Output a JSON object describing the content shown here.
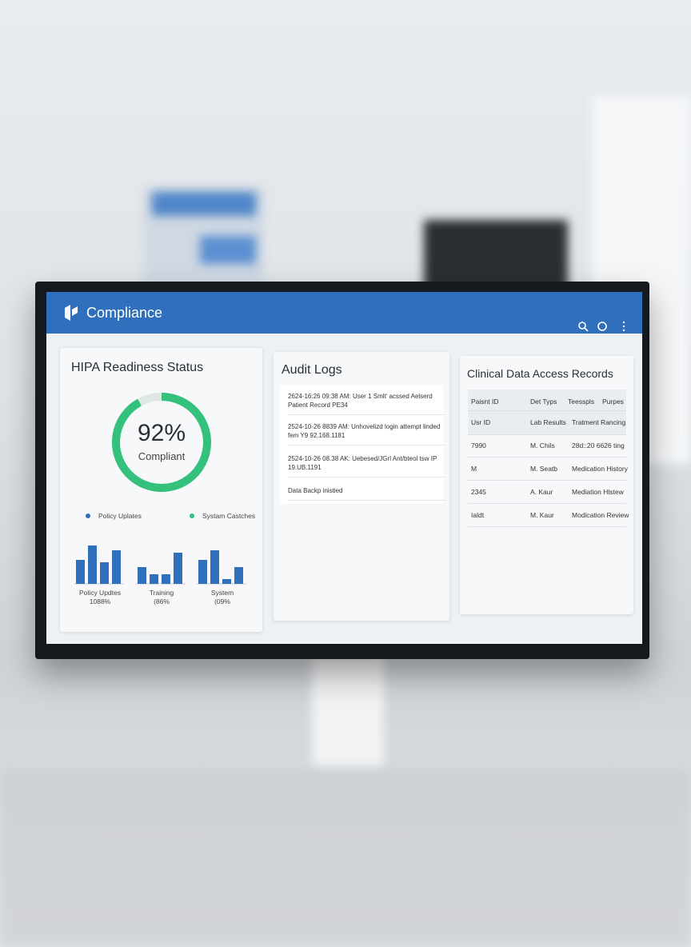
{
  "header": {
    "title": "Compliance"
  },
  "readiness": {
    "title": "HIPA Readiness Status",
    "gauge": {
      "value": 92,
      "label": "92%",
      "caption": "Compliant"
    },
    "legend": [
      "Policy Uplates",
      "Systam Castches"
    ],
    "bar_groups": [
      {
        "name": "Policy Updtes",
        "note": "1088%",
        "values": [
          5,
          8,
          4.5,
          7
        ]
      },
      {
        "name": "Training",
        "note": "(86%",
        "values": [
          3.5,
          2,
          2,
          6.5
        ]
      },
      {
        "name": "System",
        "note": "(09%",
        "values": [
          5,
          7,
          1,
          3.5
        ]
      }
    ]
  },
  "audit_logs": {
    "title": "Audit Logs",
    "entries": [
      "2624-16:26 09:38 AM: User 1 Smlt' acssed Aelserd Patient Record PE34",
      "2524-10-26 8839 AM: Unhovelizd login attempt linded fem Y9 92.168.1181",
      "2524-10-26 08.38 AK: Uebesed/JGrl Ant/bteol tsw IP 19.UB.1191",
      "Data Backp inistied"
    ]
  },
  "access_records": {
    "title": "Clinical Data Access Records",
    "header_rows": [
      [
        "Paisnt ID",
        "Det Typs",
        "Teesspls",
        "Purpes"
      ],
      [
        "Usr ID",
        "Lab Results",
        "Tratment Rancing"
      ]
    ],
    "rows": [
      [
        "7990",
        "M. Chils",
        "28d::20 6626 ting"
      ],
      [
        "M",
        "M. Seatb",
        "Medication History"
      ],
      [
        "2345",
        "A. Kaur",
        "Mediation Hlstew"
      ],
      [
        "Ialdt",
        "M. Kaur",
        "Modication Review"
      ]
    ]
  }
}
